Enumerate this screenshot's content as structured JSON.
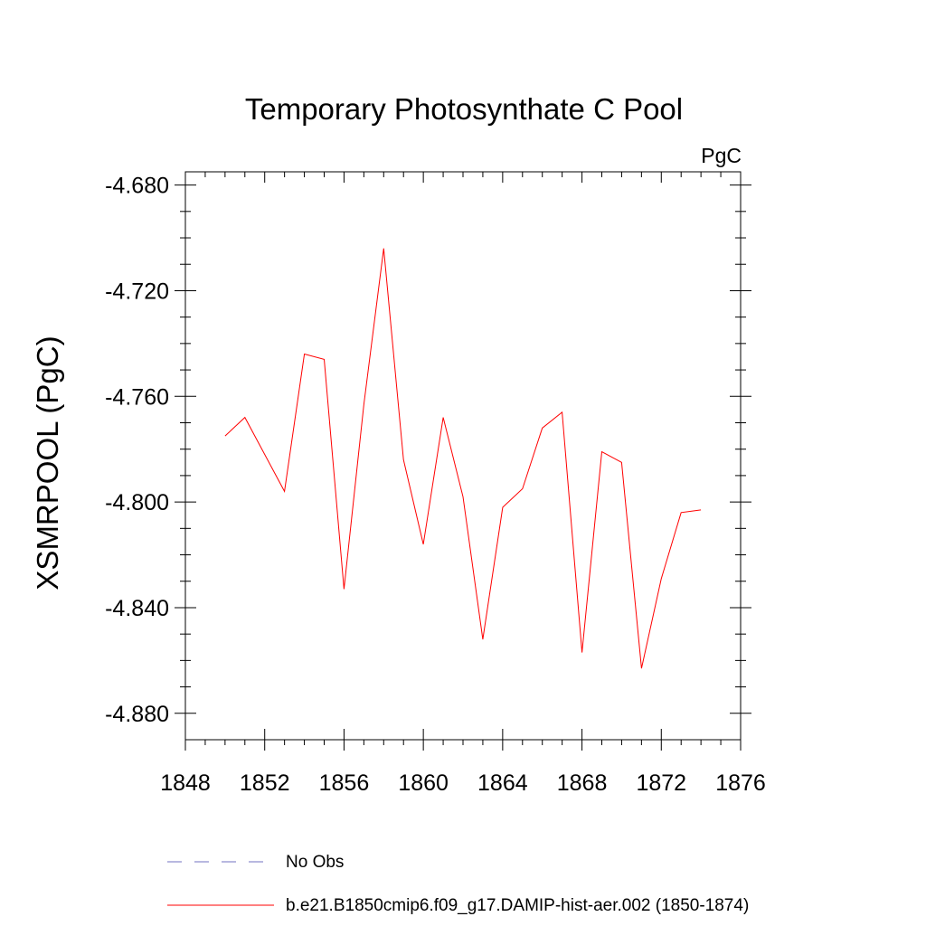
{
  "chart_data": {
    "type": "line",
    "title": "Temporary Photosynthate C Pool",
    "units_label": "PgC",
    "ylabel": "XSMRPOOL  (PgC)",
    "xlabel": "",
    "xlim": [
      1848,
      1876
    ],
    "ylim": [
      -4.89,
      -4.675
    ],
    "x_ticks": [
      1848,
      1852,
      1856,
      1860,
      1864,
      1868,
      1872,
      1876
    ],
    "x_tick_labels": [
      "1848",
      "1852",
      "1856",
      "1860",
      "1864",
      "1868",
      "1872",
      "1876"
    ],
    "y_ticks": [
      -4.68,
      -4.72,
      -4.76,
      -4.8,
      -4.84,
      -4.88
    ],
    "y_tick_labels": [
      "-4.680",
      "-4.720",
      "-4.760",
      "-4.800",
      "-4.840",
      "-4.880"
    ],
    "grid": false,
    "legend_position": "bottom",
    "series": [
      {
        "name": "b.e21.B1850cmip6.f09_g17.DAMIP-hist-aer.002 (1850-1874)",
        "color": "#ff0000",
        "style": "solid",
        "x": [
          1850,
          1851,
          1852,
          1853,
          1854,
          1855,
          1856,
          1857,
          1858,
          1859,
          1860,
          1861,
          1862,
          1863,
          1864,
          1865,
          1866,
          1867,
          1868,
          1869,
          1870,
          1871,
          1872,
          1873,
          1874
        ],
        "y": [
          -4.775,
          -4.768,
          -4.782,
          -4.796,
          -4.744,
          -4.746,
          -4.833,
          -4.763,
          -4.704,
          -4.784,
          -4.816,
          -4.768,
          -4.798,
          -4.852,
          -4.802,
          -4.795,
          -4.772,
          -4.766,
          -4.857,
          -4.781,
          -4.785,
          -4.863,
          -4.829,
          -4.804,
          -4.803
        ]
      }
    ],
    "legend": [
      {
        "label": "No Obs",
        "color": "#7070c0",
        "style": "dashed"
      },
      {
        "label": "b.e21.B1850cmip6.f09_g17.DAMIP-hist-aer.002 (1850-1874)",
        "color": "#ff0000",
        "style": "solid"
      }
    ]
  }
}
